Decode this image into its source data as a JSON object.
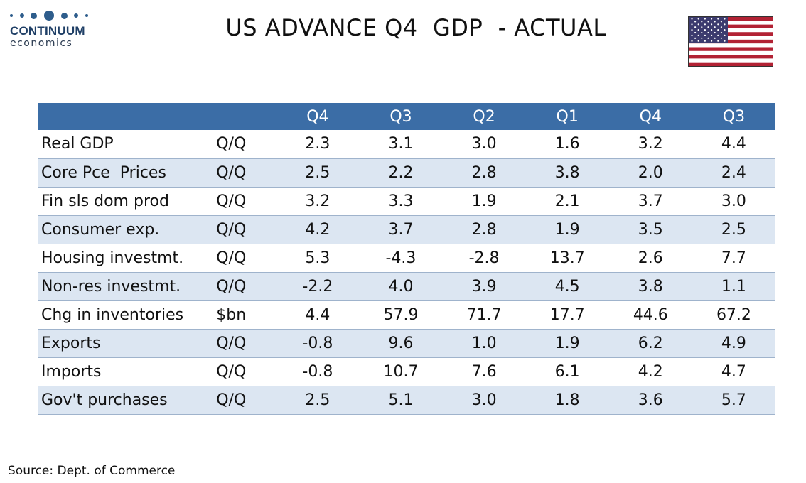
{
  "brand": {
    "name": "CONTINUUM",
    "sub": "economics"
  },
  "title": "US ADVANCE Q4  GDP  - ACTUAL",
  "flag_icon": "us-flag-icon",
  "colors": {
    "header_bg": "#3b6da6",
    "band_bg": "#dce6f2",
    "brand": "#1f3f66"
  },
  "table": {
    "headers": [
      "",
      "",
      "Q4",
      "Q3",
      "Q2",
      "Q1",
      "Q4",
      "Q3"
    ],
    "rows": [
      {
        "label": "Real GDP",
        "unit": "Q/Q",
        "values": [
          "2.3",
          "3.1",
          "3.0",
          "1.6",
          "3.2",
          "4.4"
        ]
      },
      {
        "label": "Core Pce  Prices",
        "unit": "Q/Q",
        "values": [
          "2.5",
          "2.2",
          "2.8",
          "3.8",
          "2.0",
          "2.4"
        ]
      },
      {
        "label": "Fin sls dom prod",
        "unit": "Q/Q",
        "values": [
          "3.2",
          "3.3",
          "1.9",
          "2.1",
          "3.7",
          "3.0"
        ]
      },
      {
        "label": "Consumer exp.",
        "unit": "Q/Q",
        "values": [
          "4.2",
          "3.7",
          "2.8",
          "1.9",
          "3.5",
          "2.5"
        ]
      },
      {
        "label": "Housing investmt.",
        "unit": "Q/Q",
        "values": [
          "5.3",
          "-4.3",
          "-2.8",
          "13.7",
          "2.6",
          "7.7"
        ]
      },
      {
        "label": "Non-res investmt.",
        "unit": "Q/Q",
        "values": [
          "-2.2",
          "4.0",
          "3.9",
          "4.5",
          "3.8",
          "1.1"
        ]
      },
      {
        "label": "Chg in inventories",
        "unit": "$bn",
        "values": [
          "4.4",
          "57.9",
          "71.7",
          "17.7",
          "44.6",
          "67.2"
        ]
      },
      {
        "label": "Exports",
        "unit": "Q/Q",
        "values": [
          "-0.8",
          "9.6",
          "1.0",
          "1.9",
          "6.2",
          "4.9"
        ]
      },
      {
        "label": "Imports",
        "unit": "Q/Q",
        "values": [
          "-0.8",
          "10.7",
          "7.6",
          "6.1",
          "4.2",
          "4.7"
        ]
      },
      {
        "label": "Gov't purchases",
        "unit": "Q/Q",
        "values": [
          "2.5",
          "5.1",
          "3.0",
          "1.8",
          "3.6",
          "5.7"
        ]
      }
    ]
  },
  "source": "Source: Dept. of Commerce"
}
